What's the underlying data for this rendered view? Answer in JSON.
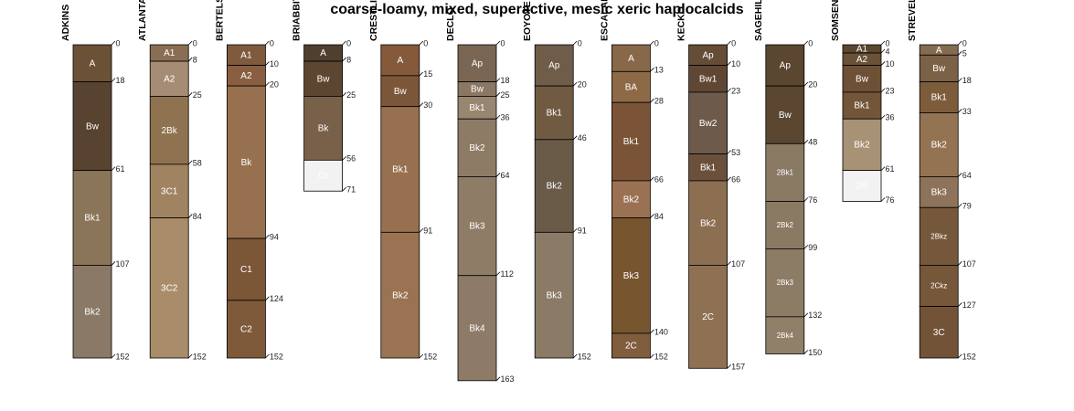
{
  "chart_data": {
    "type": "soil-profile-sketch",
    "title": "coarse-loamy, mixed, superactive, mesic xeric haplocalcids",
    "depth_units": "cm",
    "depth_range": [
      0,
      163
    ],
    "profiles": [
      {
        "name": "ADKINS",
        "horizons": [
          {
            "name": "A",
            "top": 0,
            "bottom": 18,
            "color": "#6b5135"
          },
          {
            "name": "Bw",
            "top": 18,
            "bottom": 61,
            "color": "#574330"
          },
          {
            "name": "Bk1",
            "top": 61,
            "bottom": 107,
            "color": "#8b7558"
          },
          {
            "name": "Bk2",
            "top": 107,
            "bottom": 152,
            "color": "#8a7966"
          }
        ]
      },
      {
        "name": "ATLANTA",
        "horizons": [
          {
            "name": "A1",
            "top": 0,
            "bottom": 8,
            "color": "#8a6d52"
          },
          {
            "name": "A2",
            "top": 8,
            "bottom": 25,
            "color": "#a58c74"
          },
          {
            "name": "2Bk",
            "top": 25,
            "bottom": 58,
            "color": "#8f7250"
          },
          {
            "name": "3C1",
            "top": 58,
            "bottom": 84,
            "color": "#a08461"
          },
          {
            "name": "3C2",
            "top": 84,
            "bottom": 152,
            "color": "#a98d6a"
          }
        ]
      },
      {
        "name": "BERTELSON",
        "horizons": [
          {
            "name": "A1",
            "top": 0,
            "bottom": 10,
            "color": "#7f5a3d"
          },
          {
            "name": "A2",
            "top": 10,
            "bottom": 20,
            "color": "#8a5f41"
          },
          {
            "name": "Bk",
            "top": 20,
            "bottom": 94,
            "color": "#97714f"
          },
          {
            "name": "C1",
            "top": 94,
            "bottom": 124,
            "color": "#7b5637"
          },
          {
            "name": "C2",
            "top": 124,
            "bottom": 152,
            "color": "#7e5a3a"
          }
        ]
      },
      {
        "name": "BRIABBIT",
        "horizons": [
          {
            "name": "A",
            "top": 0,
            "bottom": 8,
            "color": "#4e3f2e"
          },
          {
            "name": "Bw",
            "top": 8,
            "bottom": 25,
            "color": "#5c4631"
          },
          {
            "name": "Bk",
            "top": 25,
            "bottom": 56,
            "color": "#786049"
          },
          {
            "name": "Cr",
            "top": 56,
            "bottom": 71,
            "color": "#f2f2f2"
          }
        ]
      },
      {
        "name": "CRESTLINE",
        "horizons": [
          {
            "name": "A",
            "top": 0,
            "bottom": 15,
            "color": "#845a3b"
          },
          {
            "name": "Bw",
            "top": 15,
            "bottom": 30,
            "color": "#7c5638"
          },
          {
            "name": "Bk1",
            "top": 30,
            "bottom": 91,
            "color": "#97704f"
          },
          {
            "name": "Bk2",
            "top": 91,
            "bottom": 152,
            "color": "#9a7352"
          }
        ]
      },
      {
        "name": "DECLO",
        "horizons": [
          {
            "name": "Ap",
            "top": 0,
            "bottom": 18,
            "color": "#7a6653"
          },
          {
            "name": "Bw",
            "top": 18,
            "bottom": 25,
            "color": "#8b7864"
          },
          {
            "name": "Bk1",
            "top": 25,
            "bottom": 36,
            "color": "#998670"
          },
          {
            "name": "Bk2",
            "top": 36,
            "bottom": 64,
            "color": "#8e7b66"
          },
          {
            "name": "Bk3",
            "top": 64,
            "bottom": 112,
            "color": "#8f7c67"
          },
          {
            "name": "Bk4",
            "top": 112,
            "bottom": 163,
            "color": "#8e7b67"
          }
        ]
      },
      {
        "name": "EOYOTE",
        "horizons": [
          {
            "name": "Ap",
            "top": 0,
            "bottom": 20,
            "color": "#6f5c49"
          },
          {
            "name": "Bk1",
            "top": 20,
            "bottom": 46,
            "color": "#715a42"
          },
          {
            "name": "Bk2",
            "top": 46,
            "bottom": 91,
            "color": "#6a5a48"
          },
          {
            "name": "Bk3",
            "top": 91,
            "bottom": 152,
            "color": "#8a7a66"
          }
        ]
      },
      {
        "name": "ESCALANTE",
        "horizons": [
          {
            "name": "A",
            "top": 0,
            "bottom": 13,
            "color": "#89684a"
          },
          {
            "name": "BA",
            "top": 13,
            "bottom": 28,
            "color": "#8d6a45"
          },
          {
            "name": "Bk1",
            "top": 28,
            "bottom": 66,
            "color": "#7b5437"
          },
          {
            "name": "Bk2",
            "top": 66,
            "bottom": 84,
            "color": "#9a7152"
          },
          {
            "name": "Bk3",
            "top": 84,
            "bottom": 140,
            "color": "#76552f"
          },
          {
            "name": "2C",
            "top": 140,
            "bottom": 152,
            "color": "#805d3d"
          }
        ]
      },
      {
        "name": "KECKO",
        "horizons": [
          {
            "name": "Ap",
            "top": 0,
            "bottom": 10,
            "color": "#654c36"
          },
          {
            "name": "Bw1",
            "top": 10,
            "bottom": 23,
            "color": "#5f4733"
          },
          {
            "name": "Bw2",
            "top": 23,
            "bottom": 53,
            "color": "#6e5a4a"
          },
          {
            "name": "Bk1",
            "top": 53,
            "bottom": 66,
            "color": "#6b513c"
          },
          {
            "name": "Bk2",
            "top": 66,
            "bottom": 107,
            "color": "#8c6e51"
          },
          {
            "name": "2C",
            "top": 107,
            "bottom": 157,
            "color": "#8e7153"
          }
        ]
      },
      {
        "name": "SAGEHILL",
        "horizons": [
          {
            "name": "Ap",
            "top": 0,
            "bottom": 20,
            "color": "#5a4631"
          },
          {
            "name": "Bw",
            "top": 20,
            "bottom": 48,
            "color": "#5a4631"
          },
          {
            "name": "2Bk1",
            "top": 48,
            "bottom": 76,
            "color": "#8a7a64"
          },
          {
            "name": "2Bk2",
            "top": 76,
            "bottom": 99,
            "color": "#8a7a64"
          },
          {
            "name": "2Bk3",
            "top": 99,
            "bottom": 132,
            "color": "#8c7c66"
          },
          {
            "name": "2Bk4",
            "top": 132,
            "bottom": 150,
            "color": "#908069"
          }
        ]
      },
      {
        "name": "SOMSEN",
        "horizons": [
          {
            "name": "A1",
            "top": 0,
            "bottom": 4,
            "color": "#5a4631"
          },
          {
            "name": "A2",
            "top": 4,
            "bottom": 10,
            "color": "#6a5138"
          },
          {
            "name": "Bw",
            "top": 10,
            "bottom": 23,
            "color": "#6e5135"
          },
          {
            "name": "Bk1",
            "top": 23,
            "bottom": 36,
            "color": "#735539"
          },
          {
            "name": "Bk2",
            "top": 36,
            "bottom": 61,
            "color": "#a89276"
          },
          {
            "name": "2R",
            "top": 61,
            "bottom": 76,
            "color": "#f2f2f2"
          }
        ]
      },
      {
        "name": "STREVELL",
        "horizons": [
          {
            "name": "A",
            "top": 0,
            "bottom": 5,
            "color": "#846c52"
          },
          {
            "name": "Bw",
            "top": 5,
            "bottom": 18,
            "color": "#7b6146"
          },
          {
            "name": "Bk1",
            "top": 18,
            "bottom": 33,
            "color": "#7d5c3c"
          },
          {
            "name": "Bk2",
            "top": 33,
            "bottom": 64,
            "color": "#937352"
          },
          {
            "name": "Bk3",
            "top": 64,
            "bottom": 79,
            "color": "#8e7259"
          },
          {
            "name": "2Bkz",
            "top": 79,
            "bottom": 107,
            "color": "#75583c"
          },
          {
            "name": "2Ckz",
            "top": 107,
            "bottom": 127,
            "color": "#76573a"
          },
          {
            "name": "3C",
            "top": 127,
            "bottom": 152,
            "color": "#735338"
          }
        ]
      }
    ]
  }
}
